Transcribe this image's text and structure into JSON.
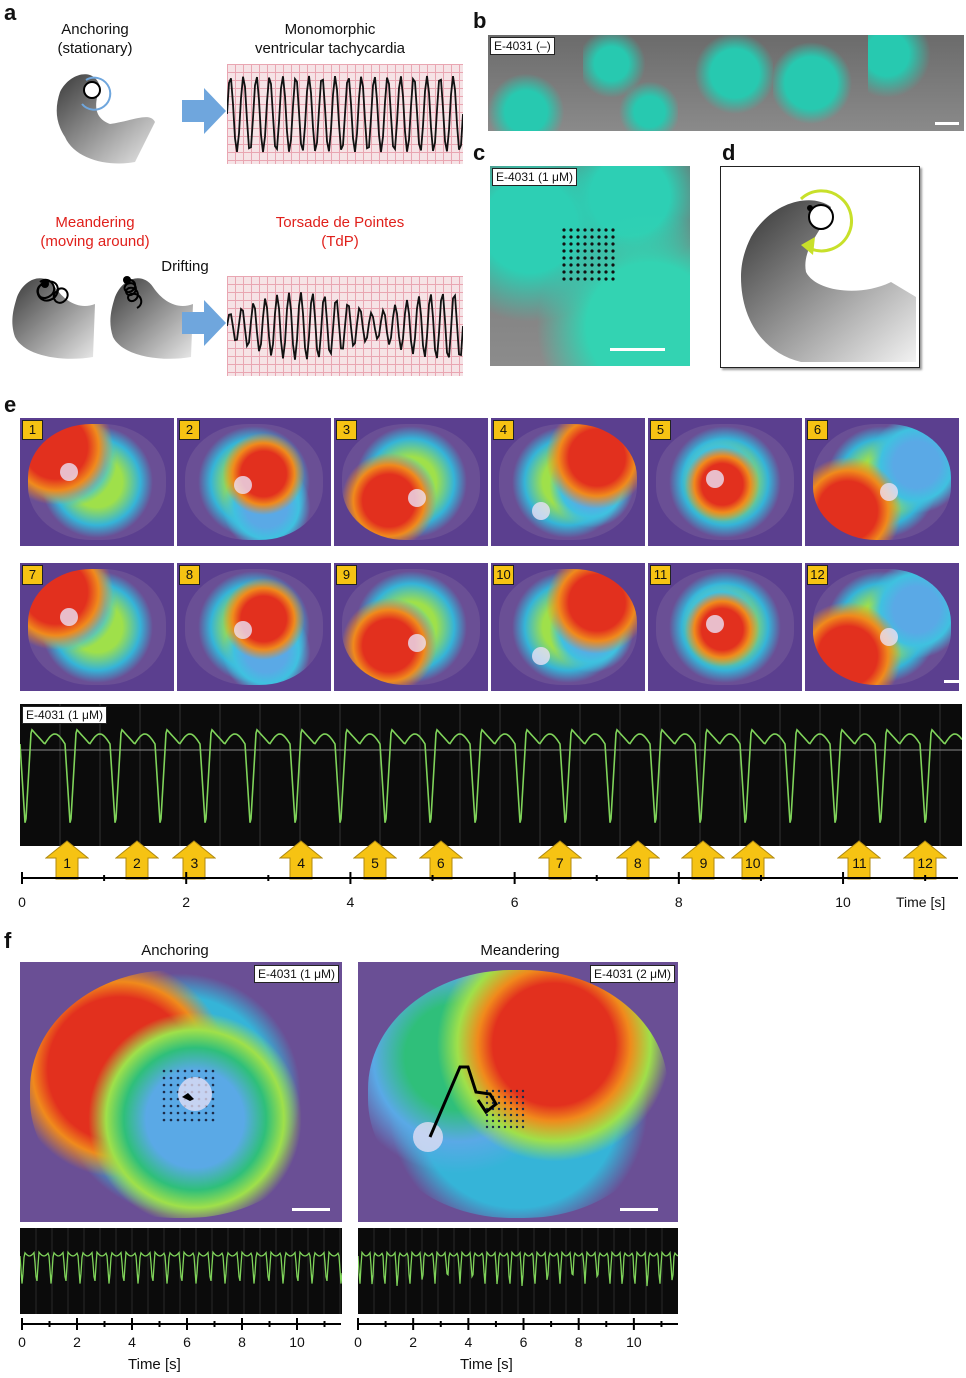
{
  "panel_labels": {
    "a": "a",
    "b": "b",
    "c": "c",
    "d": "d",
    "e": "e",
    "f": "f"
  },
  "panel_a": {
    "anchoring_line1": "Anchoring",
    "anchoring_line2": "(stationary)",
    "mvt_line1": "Monomorphic",
    "mvt_line2": "ventricular tachycardia",
    "meandering_line1": "Meandering",
    "meandering_line2": "(moving around)",
    "drifting": "Drifting",
    "tdp_line1": "Torsade de Pointes",
    "tdp_line2": "(TdP)",
    "accent_red": "#e0201b",
    "arrow_color": "#6fa6dd"
  },
  "panel_b": {
    "label": "E-4031 (–)"
  },
  "panel_c": {
    "label": "E-4031 (1 μM)"
  },
  "panel_e": {
    "frames_row1": [
      "1",
      "2",
      "3",
      "4",
      "5",
      "6"
    ],
    "frames_row2": [
      "7",
      "8",
      "9",
      "10",
      "11",
      "12"
    ],
    "trace_label": "E-4031 (1 μM)",
    "arrows": [
      "1",
      "2",
      "3",
      "4",
      "5",
      "6",
      "7",
      "8",
      "9",
      "10",
      "11",
      "12"
    ],
    "arrow_times": [
      0.55,
      1.4,
      2.1,
      3.4,
      4.3,
      5.1,
      6.55,
      7.5,
      8.3,
      8.9,
      10.2,
      11.0
    ],
    "axis_ticks": [
      "0",
      "2",
      "4",
      "6",
      "8",
      "10"
    ],
    "axis_unit": "Time [s]",
    "arrow_color": "#f6c313",
    "trace_color": "#7fd35a"
  },
  "panel_f": {
    "left_title": "Anchoring",
    "left_label": "E-4031 (1 μM)",
    "right_title": "Meandering",
    "right_label": "E-4031 (2 μM)",
    "axis_ticks": [
      "0",
      "2",
      "4",
      "6",
      "8",
      "10"
    ],
    "axis_unit": "Time [s]"
  }
}
